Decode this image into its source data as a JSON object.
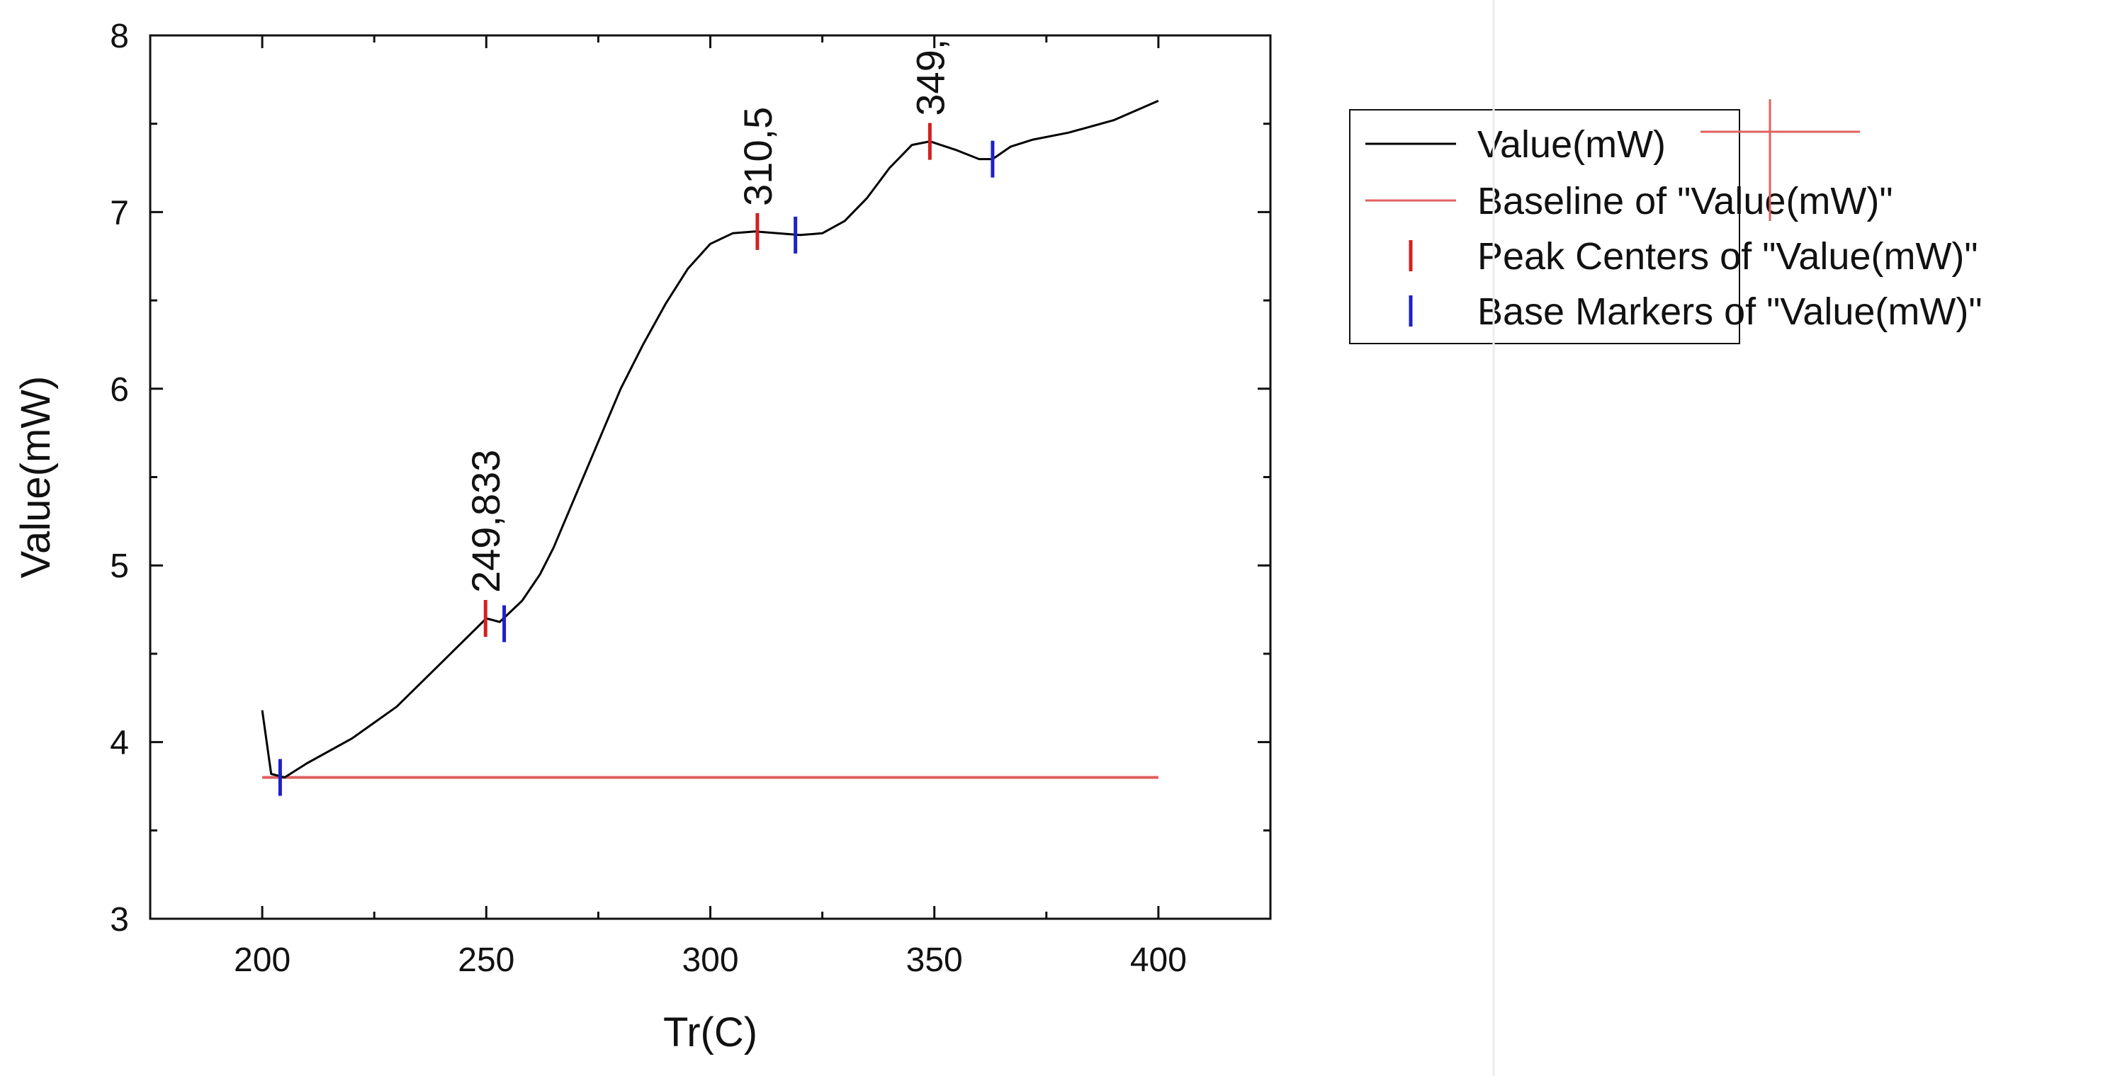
{
  "chart_data": {
    "type": "line",
    "xlabel": "Tr(C)",
    "ylabel": "Value(mW)",
    "xlim": [
      175,
      425
    ],
    "ylim": [
      3,
      8
    ],
    "x_ticks": [
      200,
      250,
      300,
      350,
      400
    ],
    "y_ticks": [
      3,
      4,
      5,
      6,
      7,
      8
    ],
    "colors": {
      "value_line": "#000000",
      "baseline": "#e06060",
      "peak_marker": "#d42020",
      "base_marker": "#2020c8"
    },
    "series": [
      {
        "name": "Value(mW)",
        "kind": "line",
        "x": [
          200,
          202,
          205,
          210,
          220,
          230,
          240,
          248,
          250,
          253,
          258,
          262,
          265,
          270,
          275,
          280,
          285,
          290,
          295,
          300,
          305,
          310,
          315,
          320,
          325,
          330,
          335,
          340,
          345,
          349,
          355,
          360,
          363,
          367,
          372,
          380,
          390,
          400
        ],
        "y": [
          4.18,
          3.82,
          3.8,
          3.88,
          4.02,
          4.2,
          4.45,
          4.65,
          4.7,
          4.68,
          4.8,
          4.95,
          5.1,
          5.4,
          5.7,
          6.0,
          6.25,
          6.48,
          6.68,
          6.82,
          6.88,
          6.89,
          6.88,
          6.87,
          6.88,
          6.95,
          7.08,
          7.25,
          7.38,
          7.4,
          7.35,
          7.3,
          7.3,
          7.37,
          7.41,
          7.45,
          7.52,
          7.63
        ]
      },
      {
        "name": "Baseline of \"Value(mW)\"",
        "kind": "line",
        "x": [
          200,
          400
        ],
        "y": [
          3.8,
          3.8
        ]
      },
      {
        "name": "Peak Centers of \"Value(mW)\"",
        "kind": "marker",
        "x": [
          249.833,
          310.5,
          349
        ],
        "y": [
          4.7,
          6.89,
          7.4
        ]
      },
      {
        "name": "Base Markers of \"Value(mW)\"",
        "kind": "marker",
        "x": [
          204,
          254,
          319,
          363
        ],
        "y": [
          3.8,
          4.67,
          6.87,
          7.3
        ]
      }
    ],
    "annotations": [
      "249,833",
      "310,5",
      "349,"
    ],
    "legend": {
      "entries": [
        "Value(mW)",
        "Baseline of \"Value(mW)\"",
        "Peak Centers of \"Value(mW)\"",
        "Base Markers of \"Value(mW)\""
      ]
    }
  }
}
